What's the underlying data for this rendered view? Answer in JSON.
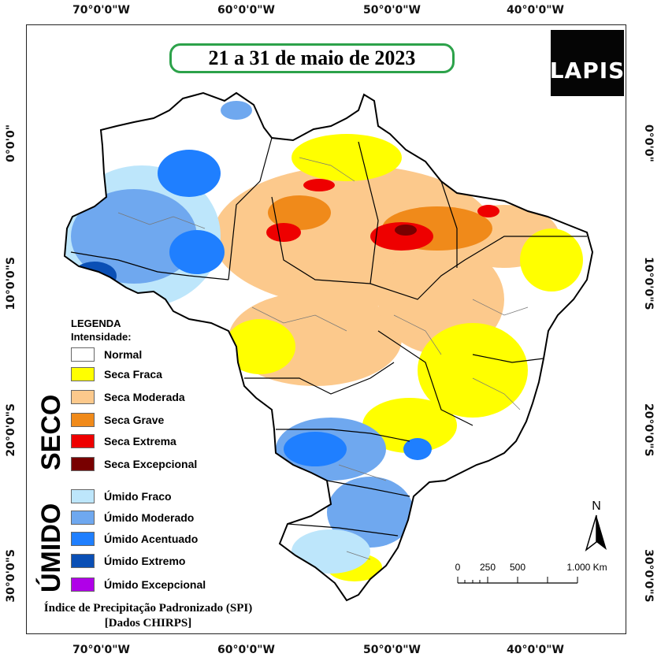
{
  "map": {
    "title": "21 a 31 de maio de 2023",
    "logo_text": "LAPIS",
    "lon_ticks": [
      "70°0'0\"W",
      "60°0'0\"W",
      "50°0'0\"W",
      "40°0'0\"W"
    ],
    "lat_ticks": [
      "0°0'0\"",
      "10°0'0\"S",
      "20°0'0\"S",
      "30°0'0\"S"
    ],
    "legend": {
      "heading": "LEGENDA",
      "subheading": "Intensidade:",
      "dry_label": "SECO",
      "wet_label": "ÚMIDO",
      "items": [
        {
          "label": "Normal",
          "color": "#ffffff"
        },
        {
          "label": "Seca Fraca",
          "color": "#ffff00"
        },
        {
          "label": "Seca Moderada",
          "color": "#fcc98c"
        },
        {
          "label": "Seca Grave",
          "color": "#f08a1a"
        },
        {
          "label": "Seca Extrema",
          "color": "#ee0000"
        },
        {
          "label": "Seca Excepcional",
          "color": "#780000"
        },
        {
          "label": "Úmido Fraco",
          "color": "#bde6fb"
        },
        {
          "label": "Úmido Moderado",
          "color": "#6fa8ef"
        },
        {
          "label": "Úmido Acentuado",
          "color": "#1f7fff"
        },
        {
          "label": "Úmido Extremo",
          "color": "#0a4fb5"
        },
        {
          "label": "Úmido Excepcional",
          "color": "#b000e8"
        }
      ]
    },
    "north_label": "N",
    "scale": {
      "labels": [
        "0",
        "250",
        "500",
        "1.000 Km"
      ]
    },
    "footer": {
      "line1": "Índice de Precipitação Padronizado (SPI)",
      "line2": "[Dados CHIRPS]"
    }
  }
}
